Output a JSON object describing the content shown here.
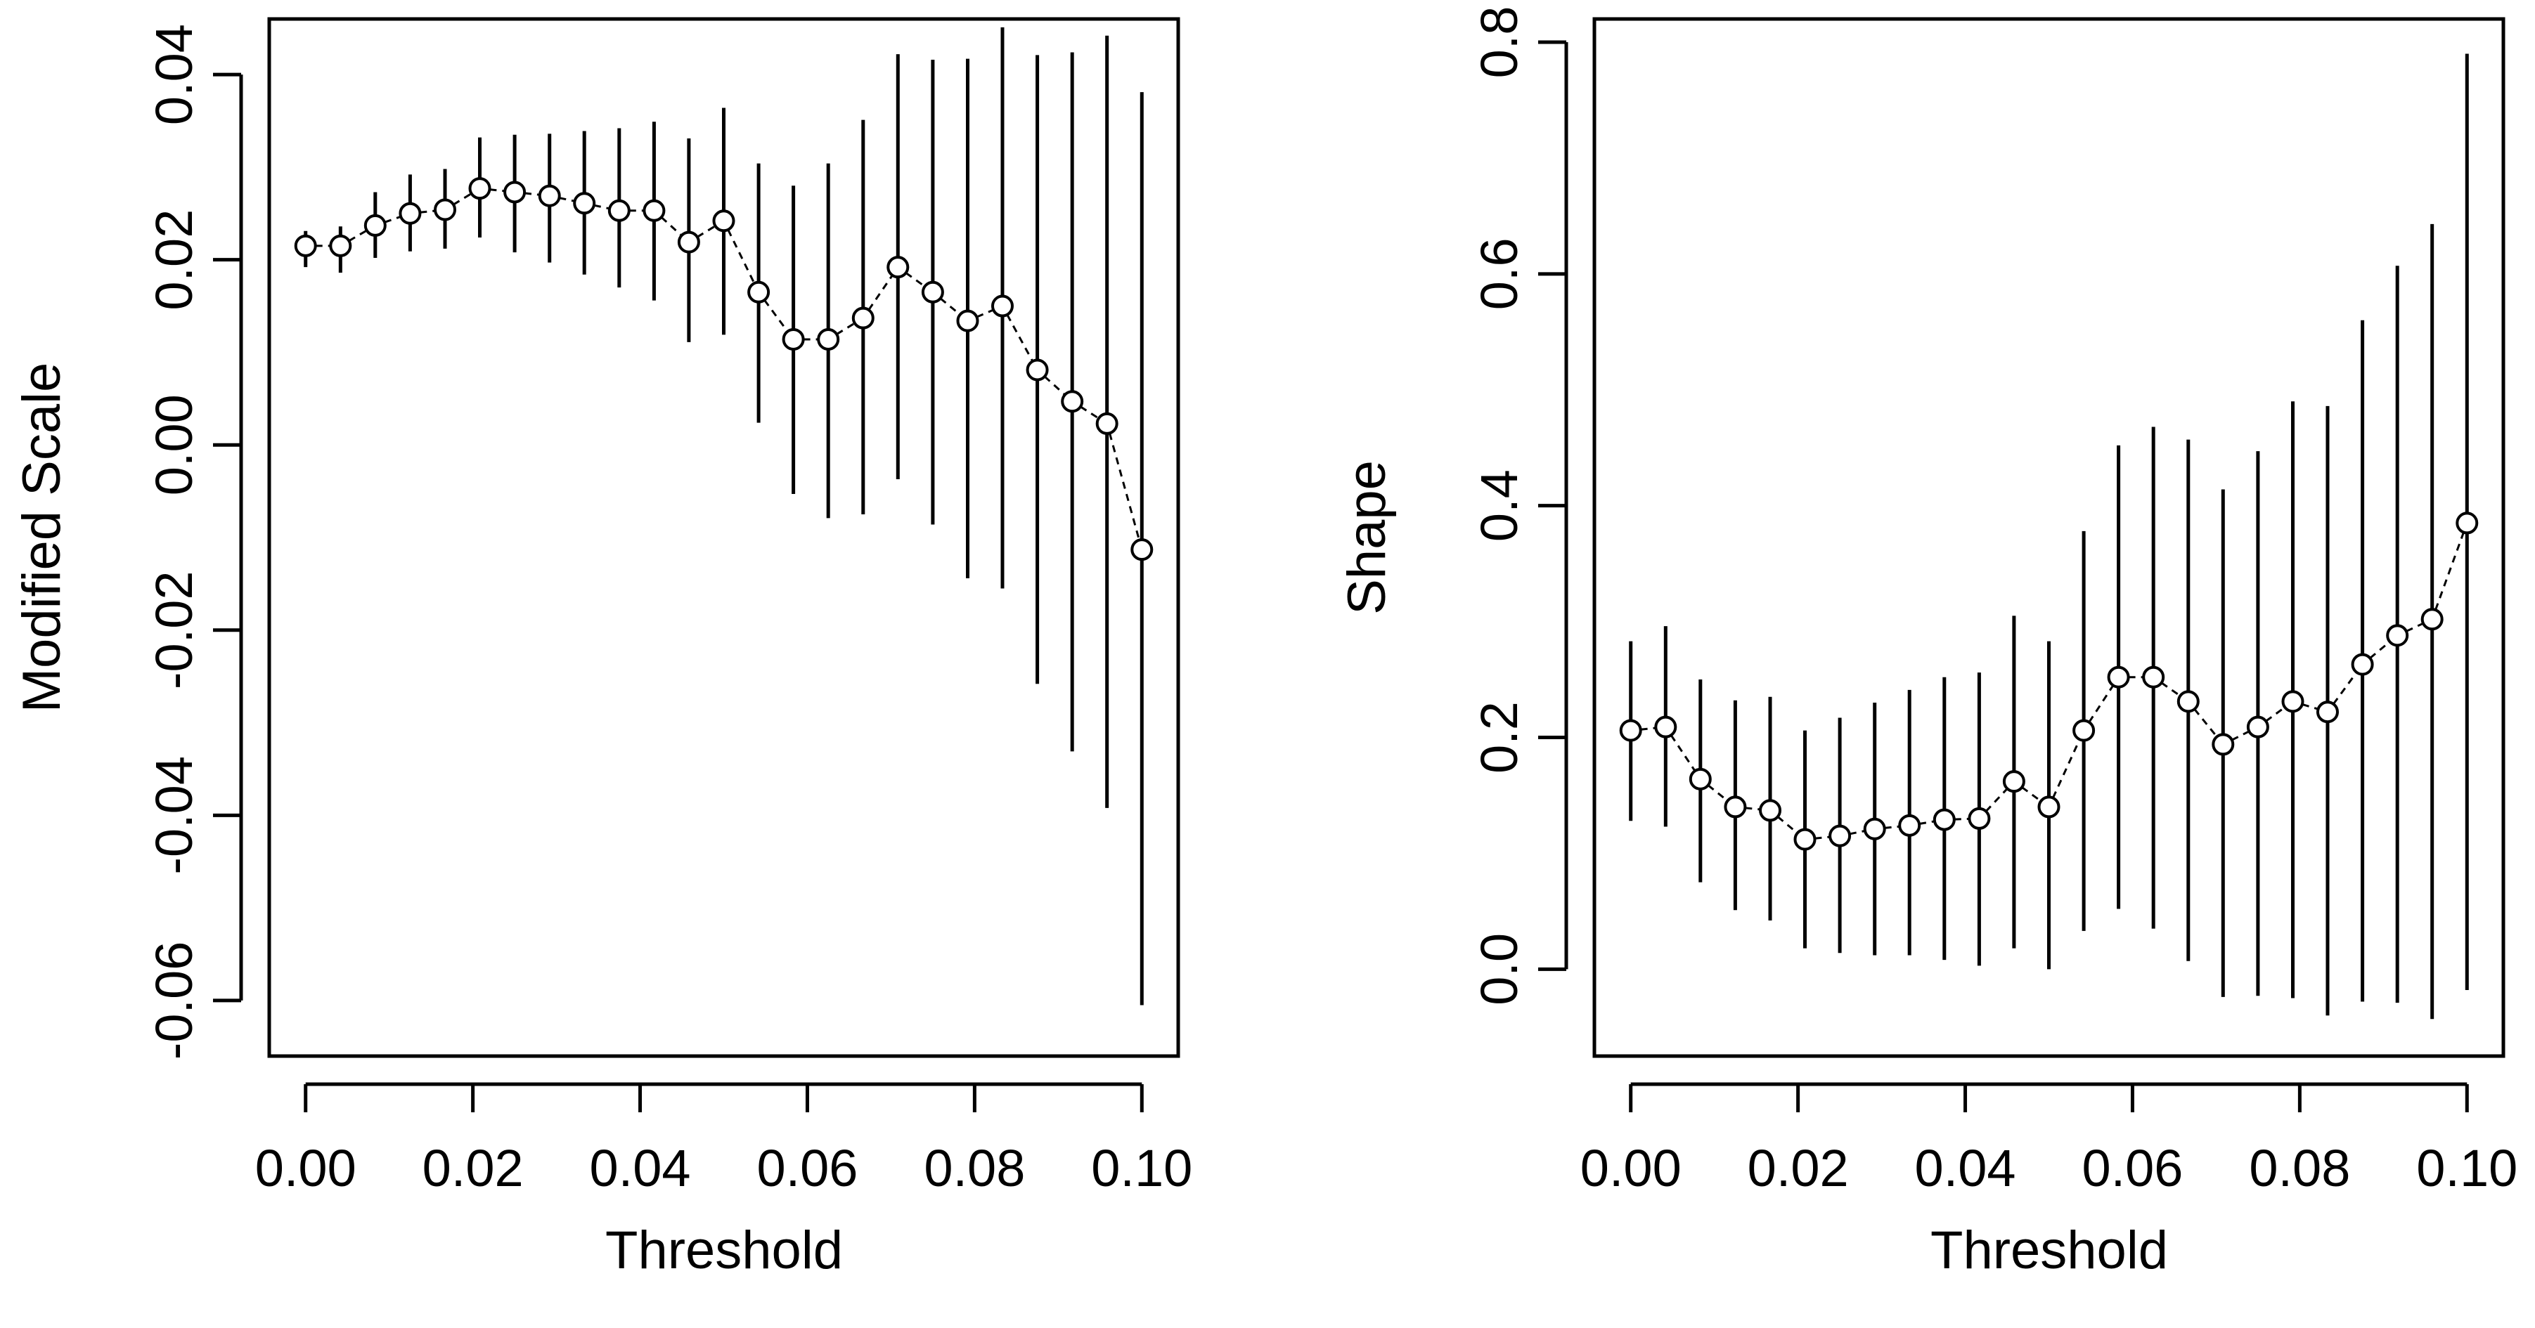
{
  "chart_data": [
    {
      "type": "scatter",
      "panel": "left",
      "xlabel": "Threshold",
      "ylabel": "Modified Scale",
      "xlim": [
        0.0,
        0.1
      ],
      "ylim": [
        -0.066,
        0.046
      ],
      "x_ticks": [
        "0.00",
        "0.02",
        "0.04",
        "0.06",
        "0.08",
        "0.10"
      ],
      "y_ticks": [
        "-0.06",
        "-0.04",
        "-0.02",
        "0.00",
        "0.02",
        "0.04"
      ],
      "grid": false,
      "series": [
        {
          "x": [
            0.0,
            0.00417,
            0.00833,
            0.0125,
            0.01667,
            0.02083,
            0.025,
            0.02917,
            0.03333,
            0.0375,
            0.04167,
            0.04583,
            0.05,
            0.05417,
            0.05833,
            0.0625,
            0.06667,
            0.07083,
            0.075,
            0.07917,
            0.08333,
            0.0875,
            0.09167,
            0.09583,
            0.1
          ],
          "y": [
            0.0215,
            0.0215,
            0.0237,
            0.025,
            0.0254,
            0.0277,
            0.0273,
            0.0269,
            0.0261,
            0.0253,
            0.0253,
            0.0219,
            0.0242,
            0.0165,
            0.0114,
            0.0114,
            0.0137,
            0.0192,
            0.0165,
            0.0134,
            0.015,
            0.0081,
            0.0047,
            0.0023,
            -0.0113
          ],
          "lower": [
            0.0192,
            0.0186,
            0.0202,
            0.0209,
            0.0212,
            0.0224,
            0.0208,
            0.0197,
            0.0184,
            0.017,
            0.0156,
            0.0111,
            0.0119,
            0.0024,
            -0.0053,
            -0.0079,
            -0.0075,
            -0.0037,
            -0.0086,
            -0.0144,
            -0.0155,
            -0.0258,
            -0.0331,
            -0.0392,
            -0.0605
          ],
          "upper": [
            0.0231,
            0.0236,
            0.0273,
            0.0292,
            0.0298,
            0.0332,
            0.0335,
            0.0336,
            0.0339,
            0.0342,
            0.0349,
            0.0331,
            0.0364,
            0.0304,
            0.028,
            0.0304,
            0.0351,
            0.0422,
            0.0416,
            0.0417,
            0.0451,
            0.0421,
            0.0424,
            0.0442,
            0.0381
          ]
        }
      ]
    },
    {
      "type": "scatter",
      "panel": "right",
      "xlabel": "Threshold",
      "ylabel": "Shape",
      "xlim": [
        0.0,
        0.1
      ],
      "ylim": [
        -0.075,
        0.82
      ],
      "x_ticks": [
        "0.00",
        "0.02",
        "0.04",
        "0.06",
        "0.08",
        "0.10"
      ],
      "y_ticks": [
        "0.0",
        "0.2",
        "0.4",
        "0.6",
        "0.8"
      ],
      "grid": false,
      "series": [
        {
          "x": [
            0.0,
            0.00417,
            0.00833,
            0.0125,
            0.01667,
            0.02083,
            0.025,
            0.02917,
            0.03333,
            0.0375,
            0.04167,
            0.04583,
            0.05,
            0.05417,
            0.05833,
            0.0625,
            0.06667,
            0.07083,
            0.075,
            0.07917,
            0.08333,
            0.0875,
            0.09167,
            0.09583,
            0.1
          ],
          "y": [
            0.206,
            0.209,
            0.164,
            0.14,
            0.137,
            0.112,
            0.115,
            0.121,
            0.124,
            0.129,
            0.13,
            0.162,
            0.14,
            0.206,
            0.252,
            0.252,
            0.231,
            0.194,
            0.209,
            0.231,
            0.222,
            0.263,
            0.288,
            0.302,
            0.385
          ],
          "lower": [
            0.128,
            0.123,
            0.075,
            0.051,
            0.042,
            0.018,
            0.014,
            0.012,
            0.012,
            0.008,
            0.003,
            0.018,
            0.0,
            0.033,
            0.052,
            0.035,
            0.007,
            -0.024,
            -0.023,
            -0.025,
            -0.04,
            -0.028,
            -0.029,
            -0.043,
            -0.018
          ],
          "upper": [
            0.283,
            0.296,
            0.25,
            0.232,
            0.235,
            0.206,
            0.217,
            0.23,
            0.241,
            0.252,
            0.256,
            0.305,
            0.283,
            0.378,
            0.452,
            0.468,
            0.457,
            0.414,
            0.447,
            0.49,
            0.486,
            0.56,
            0.607,
            0.643,
            0.79
          ]
        }
      ]
    }
  ]
}
